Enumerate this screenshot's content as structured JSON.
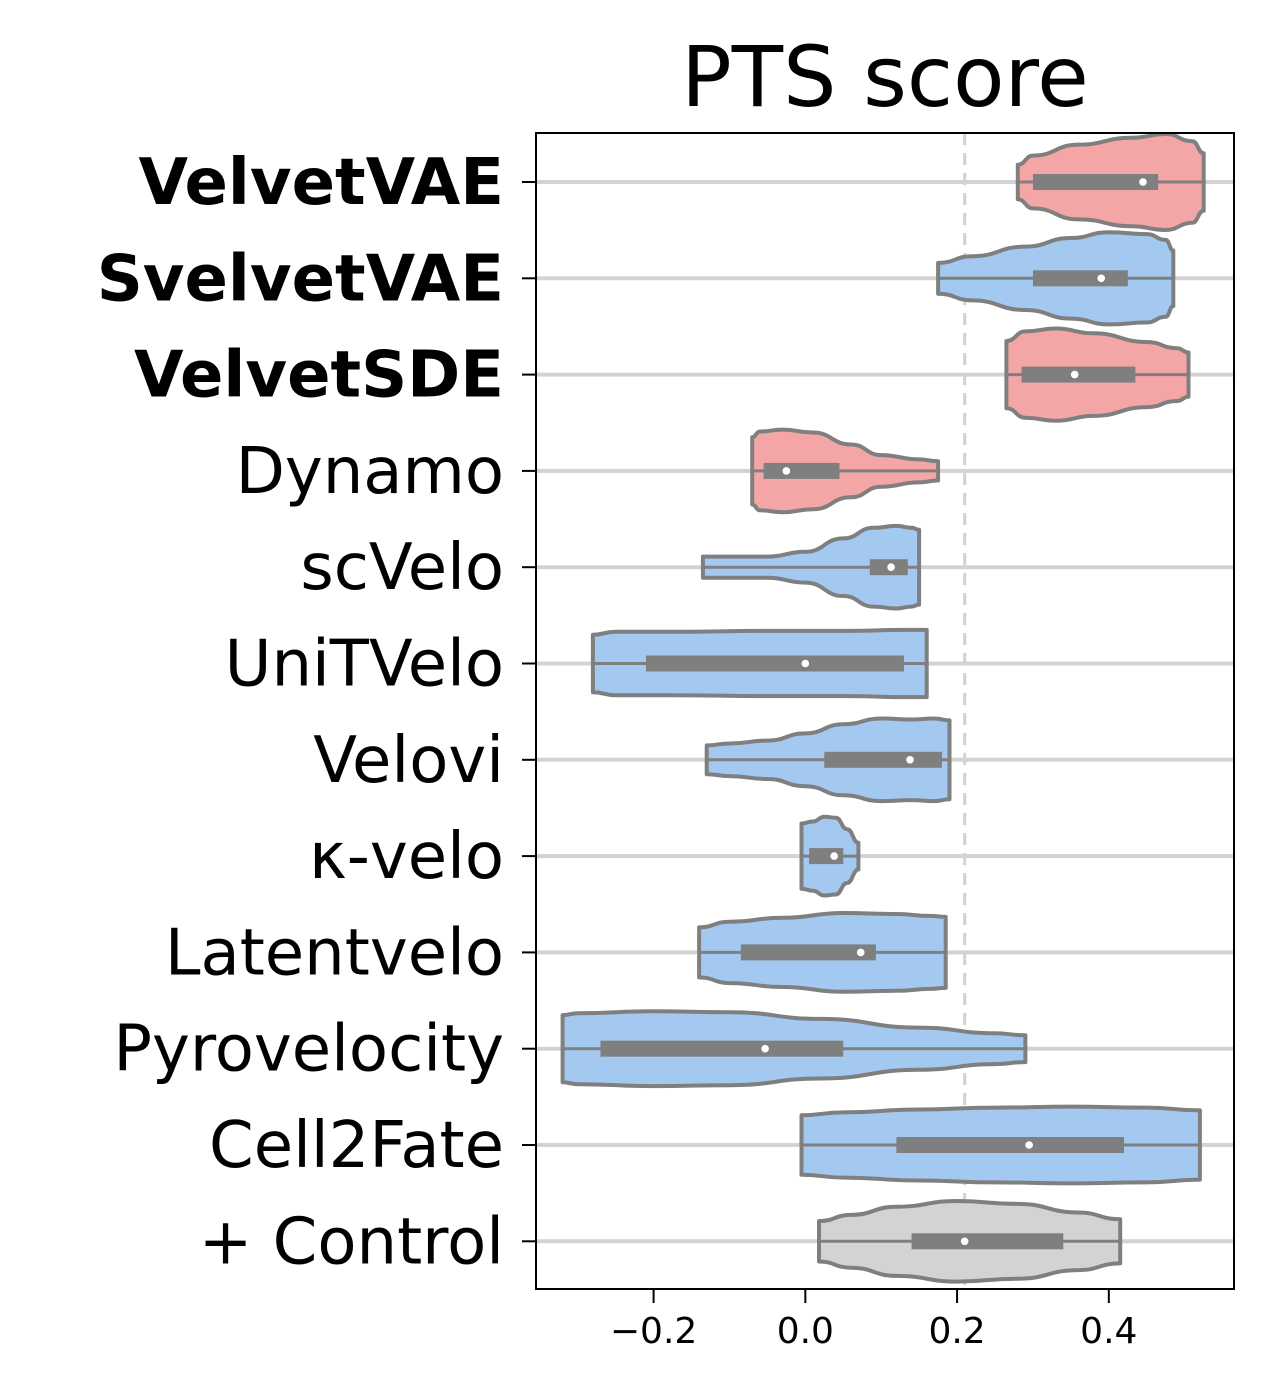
{
  "chart_data": {
    "type": "violin",
    "title": "PTS score",
    "xlabel": "",
    "ylabel": "",
    "xlim": [
      -0.355,
      0.565
    ],
    "xticks": [
      -0.2,
      0.0,
      0.2,
      0.4
    ],
    "xtick_labels": [
      "−0.2",
      "0.0",
      "0.2",
      "0.4"
    ],
    "reference_line": {
      "x": 0.21,
      "style": "dashed",
      "color": "#d3d3d3"
    },
    "grid": "horizontal",
    "colors": {
      "red": "#f4a6a6",
      "blue": "#a3c9f1",
      "gray": "#d3d3d3",
      "edge": "#7f7f7f"
    },
    "categories": [
      {
        "label": "VelvetVAE",
        "bold": true,
        "color": "red",
        "min": 0.28,
        "q1": 0.3,
        "median": 0.445,
        "q3": 0.465,
        "max": 0.525,
        "profile": [
          [
            0.28,
            0.36
          ],
          [
            0.3,
            0.55
          ],
          [
            0.36,
            0.78
          ],
          [
            0.43,
            0.92
          ],
          [
            0.475,
            1.0
          ],
          [
            0.51,
            0.85
          ],
          [
            0.525,
            0.6
          ]
        ]
      },
      {
        "label": "SvelvetVAE",
        "bold": true,
        "color": "blue",
        "min": 0.175,
        "q1": 0.3,
        "median": 0.39,
        "q3": 0.425,
        "max": 0.485,
        "profile": [
          [
            0.175,
            0.32
          ],
          [
            0.22,
            0.46
          ],
          [
            0.29,
            0.66
          ],
          [
            0.35,
            0.84
          ],
          [
            0.4,
            0.96
          ],
          [
            0.45,
            0.92
          ],
          [
            0.475,
            0.8
          ],
          [
            0.485,
            0.58
          ]
        ]
      },
      {
        "label": "VelvetSDE",
        "bold": true,
        "color": "red",
        "min": 0.265,
        "q1": 0.285,
        "median": 0.355,
        "q3": 0.435,
        "max": 0.505,
        "profile": [
          [
            0.265,
            0.7
          ],
          [
            0.29,
            0.9
          ],
          [
            0.33,
            0.96
          ],
          [
            0.38,
            0.86
          ],
          [
            0.45,
            0.68
          ],
          [
            0.49,
            0.55
          ],
          [
            0.505,
            0.46
          ]
        ]
      },
      {
        "label": "Dynamo",
        "bold": false,
        "color": "red",
        "min": -0.07,
        "q1": -0.055,
        "median": -0.025,
        "q3": 0.045,
        "max": 0.175,
        "profile": [
          [
            -0.07,
            0.7
          ],
          [
            -0.06,
            0.82
          ],
          [
            -0.03,
            0.86
          ],
          [
            0.01,
            0.8
          ],
          [
            0.06,
            0.55
          ],
          [
            0.1,
            0.33
          ],
          [
            0.15,
            0.24
          ],
          [
            0.175,
            0.2
          ]
        ]
      },
      {
        "label": "scVelo",
        "bold": false,
        "color": "blue",
        "min": -0.135,
        "q1": 0.085,
        "median": 0.113,
        "q3": 0.135,
        "max": 0.15,
        "profile": [
          [
            -0.135,
            0.22
          ],
          [
            -0.1,
            0.22
          ],
          [
            -0.05,
            0.22
          ],
          [
            0.0,
            0.32
          ],
          [
            0.05,
            0.6
          ],
          [
            0.09,
            0.82
          ],
          [
            0.12,
            0.86
          ],
          [
            0.14,
            0.82
          ],
          [
            0.15,
            0.78
          ]
        ]
      },
      {
        "label": "UniTVelo",
        "bold": false,
        "color": "blue",
        "min": -0.28,
        "q1": -0.21,
        "median": 0.0,
        "q3": 0.13,
        "max": 0.16,
        "profile": [
          [
            -0.28,
            0.6
          ],
          [
            -0.25,
            0.66
          ],
          [
            -0.18,
            0.66
          ],
          [
            -0.05,
            0.68
          ],
          [
            0.06,
            0.68
          ],
          [
            0.13,
            0.7
          ],
          [
            0.16,
            0.7
          ]
        ]
      },
      {
        "label": "Velovi",
        "bold": false,
        "color": "blue",
        "min": -0.13,
        "q1": 0.025,
        "median": 0.138,
        "q3": 0.18,
        "max": 0.19,
        "profile": [
          [
            -0.13,
            0.3
          ],
          [
            -0.1,
            0.34
          ],
          [
            -0.05,
            0.4
          ],
          [
            0.0,
            0.55
          ],
          [
            0.05,
            0.74
          ],
          [
            0.1,
            0.86
          ],
          [
            0.14,
            0.84
          ],
          [
            0.17,
            0.86
          ],
          [
            0.19,
            0.82
          ]
        ]
      },
      {
        "label": "κ-velo",
        "bold": false,
        "color": "blue",
        "min": -0.005,
        "q1": 0.005,
        "median": 0.038,
        "q3": 0.05,
        "max": 0.07,
        "profile": [
          [
            -0.005,
            0.68
          ],
          [
            0.01,
            0.72
          ],
          [
            0.025,
            0.82
          ],
          [
            0.04,
            0.8
          ],
          [
            0.055,
            0.56
          ],
          [
            0.07,
            0.28
          ]
        ]
      },
      {
        "label": "Latentvelo",
        "bold": false,
        "color": "blue",
        "min": -0.14,
        "q1": -0.085,
        "median": 0.073,
        "q3": 0.093,
        "max": 0.185,
        "profile": [
          [
            -0.14,
            0.52
          ],
          [
            -0.1,
            0.64
          ],
          [
            -0.03,
            0.72
          ],
          [
            0.05,
            0.82
          ],
          [
            0.12,
            0.8
          ],
          [
            0.165,
            0.76
          ],
          [
            0.185,
            0.74
          ]
        ]
      },
      {
        "label": "Pyrovelocity",
        "bold": false,
        "color": "blue",
        "min": -0.32,
        "q1": -0.27,
        "median": -0.053,
        "q3": 0.05,
        "max": 0.29,
        "profile": [
          [
            -0.32,
            0.7
          ],
          [
            -0.3,
            0.74
          ],
          [
            -0.2,
            0.78
          ],
          [
            -0.1,
            0.76
          ],
          [
            0.02,
            0.62
          ],
          [
            0.15,
            0.44
          ],
          [
            0.25,
            0.32
          ],
          [
            0.29,
            0.28
          ]
        ]
      },
      {
        "label": "Cell2Fate",
        "bold": false,
        "color": "blue",
        "min": -0.005,
        "q1": 0.12,
        "median": 0.295,
        "q3": 0.42,
        "max": 0.52,
        "profile": [
          [
            -0.005,
            0.62
          ],
          [
            0.05,
            0.68
          ],
          [
            0.15,
            0.74
          ],
          [
            0.25,
            0.78
          ],
          [
            0.35,
            0.8
          ],
          [
            0.45,
            0.78
          ],
          [
            0.52,
            0.72
          ]
        ]
      },
      {
        "label": "+ Control",
        "bold": false,
        "color": "gray",
        "min": 0.018,
        "q1": 0.14,
        "median": 0.21,
        "q3": 0.34,
        "max": 0.415,
        "profile": [
          [
            0.018,
            0.42
          ],
          [
            0.06,
            0.55
          ],
          [
            0.12,
            0.72
          ],
          [
            0.2,
            0.84
          ],
          [
            0.28,
            0.78
          ],
          [
            0.36,
            0.6
          ],
          [
            0.415,
            0.46
          ]
        ]
      }
    ]
  }
}
